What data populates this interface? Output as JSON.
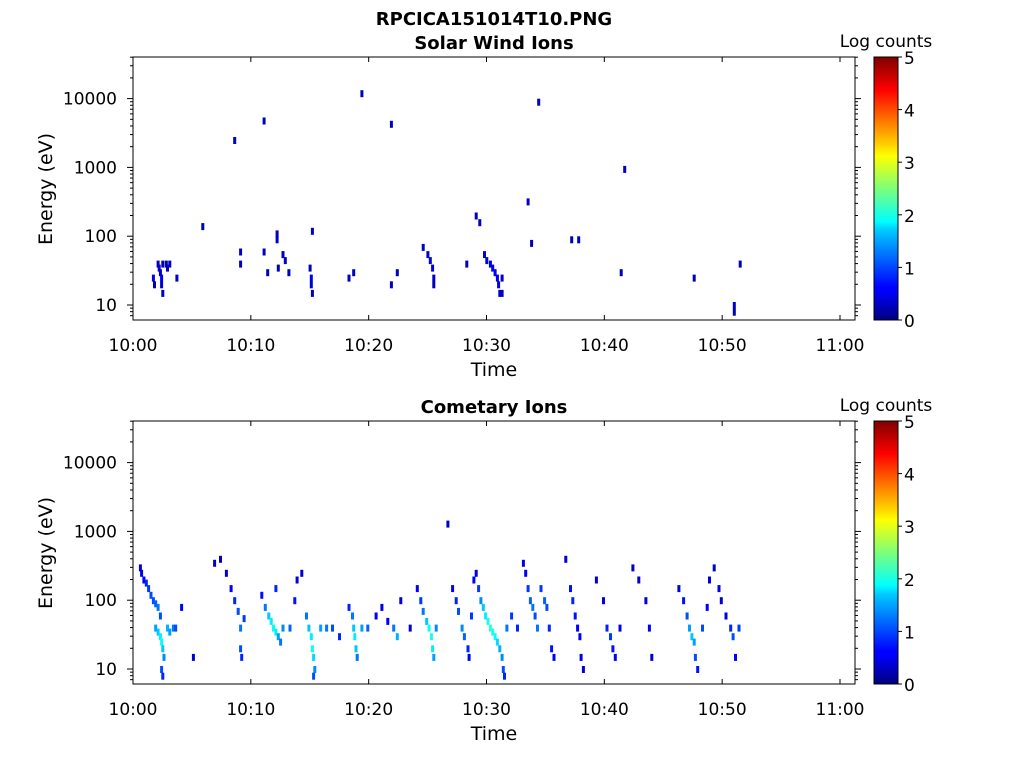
{
  "figure_title": "RPCICA151014T10.PNG",
  "chart_data": [
    {
      "type": "heatmap",
      "title": "Solar Wind Ions",
      "xlabel": "Time",
      "ylabel": "Energy (eV)",
      "x_ticks": [
        "10:00",
        "10:10",
        "10:20",
        "10:30",
        "10:40",
        "10:50",
        "11:00"
      ],
      "x_range_minutes": [
        0,
        60
      ],
      "y_ticks": [
        "10",
        "100",
        "1000",
        "10000"
      ],
      "y_scale": "log",
      "y_range": [
        6,
        45000
      ],
      "colorbar": {
        "label": "Log counts",
        "ticks": [
          "0",
          "1",
          "2",
          "3",
          "4",
          "5"
        ],
        "range": [
          0,
          5
        ],
        "colormap": "jet"
      },
      "points_time_energy_logcounts": [
        [
          1.6,
          25,
          0.5
        ],
        [
          1.7,
          20,
          0.3
        ],
        [
          2.0,
          40,
          0.3
        ],
        [
          2.1,
          35,
          0.4
        ],
        [
          2.2,
          30,
          0.3
        ],
        [
          2.3,
          25,
          0.6
        ],
        [
          2.3,
          20,
          0.4
        ],
        [
          2.4,
          15,
          0.3
        ],
        [
          2.4,
          40,
          0.3
        ],
        [
          2.7,
          40,
          0.2
        ],
        [
          2.8,
          35,
          0.3
        ],
        [
          3.0,
          40,
          0.3
        ],
        [
          3.6,
          25,
          0.3
        ],
        [
          5.8,
          140,
          0.3
        ],
        [
          8.5,
          2500,
          0.3
        ],
        [
          9.0,
          60,
          0.3
        ],
        [
          9.0,
          40,
          0.3
        ],
        [
          11.0,
          4800,
          0.3
        ],
        [
          11.0,
          60,
          0.3
        ],
        [
          11.3,
          30,
          0.3
        ],
        [
          12.1,
          110,
          0.3
        ],
        [
          12.1,
          90,
          0.4
        ],
        [
          12.2,
          35,
          0.3
        ],
        [
          12.6,
          55,
          0.3
        ],
        [
          12.8,
          45,
          0.3
        ],
        [
          13.1,
          30,
          0.3
        ],
        [
          14.9,
          35,
          0.3
        ],
        [
          15.0,
          25,
          0.5
        ],
        [
          15.0,
          20,
          0.4
        ],
        [
          15.1,
          15,
          0.3
        ],
        [
          15.1,
          120,
          0.3
        ],
        [
          18.2,
          25,
          0.3
        ],
        [
          18.6,
          30,
          0.3
        ],
        [
          19.3,
          12000,
          0.3
        ],
        [
          21.8,
          4300,
          0.3
        ],
        [
          21.8,
          20,
          0.3
        ],
        [
          22.3,
          30,
          0.3
        ],
        [
          24.5,
          70,
          0.4
        ],
        [
          24.9,
          55,
          0.4
        ],
        [
          25.1,
          45,
          0.5
        ],
        [
          25.3,
          35,
          0.5
        ],
        [
          25.4,
          25,
          0.4
        ],
        [
          25.4,
          20,
          0.3
        ],
        [
          28.2,
          40,
          0.3
        ],
        [
          29.0,
          200,
          0.3
        ],
        [
          29.3,
          160,
          0.3
        ],
        [
          29.7,
          55,
          0.4
        ],
        [
          29.9,
          45,
          0.5
        ],
        [
          30.2,
          40,
          0.5
        ],
        [
          30.4,
          35,
          0.6
        ],
        [
          30.6,
          30,
          0.6
        ],
        [
          30.8,
          25,
          0.5
        ],
        [
          30.9,
          20,
          0.5
        ],
        [
          31.0,
          15,
          0.4
        ],
        [
          31.2,
          25,
          0.4
        ],
        [
          31.2,
          15,
          0.3
        ],
        [
          33.4,
          320,
          0.3
        ],
        [
          33.7,
          80,
          0.3
        ],
        [
          34.3,
          9000,
          0.3
        ],
        [
          37.1,
          90,
          0.3
        ],
        [
          37.7,
          90,
          0.3
        ],
        [
          41.3,
          30,
          0.3
        ],
        [
          41.6,
          950,
          0.3
        ],
        [
          47.5,
          25,
          0.3
        ],
        [
          50.9,
          10,
          0.4
        ],
        [
          50.9,
          8,
          0.3
        ],
        [
          51.4,
          40,
          0.3
        ]
      ]
    },
    {
      "type": "heatmap",
      "title": "Cometary Ions",
      "xlabel": "Time",
      "ylabel": "Energy (eV)",
      "x_ticks": [
        "10:00",
        "10:10",
        "10:20",
        "10:30",
        "10:40",
        "10:50",
        "11:00"
      ],
      "x_range_minutes": [
        0,
        60
      ],
      "y_ticks": [
        "10",
        "100",
        "1000",
        "10000"
      ],
      "y_scale": "log",
      "y_range": [
        6,
        45000
      ],
      "colorbar": {
        "label": "Log counts",
        "ticks": [
          "0",
          "1",
          "2",
          "3",
          "4",
          "5"
        ],
        "range": [
          0,
          5
        ],
        "colormap": "jet"
      },
      "points_time_energy_logcounts": [
        [
          0.5,
          300,
          0.4
        ],
        [
          0.6,
          250,
          0.5
        ],
        [
          0.8,
          200,
          0.6
        ],
        [
          1.0,
          180,
          0.8
        ],
        [
          1.2,
          150,
          0.9
        ],
        [
          1.4,
          120,
          1.0
        ],
        [
          1.6,
          100,
          1.0
        ],
        [
          1.8,
          90,
          1.1
        ],
        [
          2.0,
          80,
          1.2
        ],
        [
          2.2,
          60,
          1.0
        ],
        [
          1.8,
          40,
          1.4
        ],
        [
          2.0,
          35,
          1.6
        ],
        [
          2.2,
          30,
          1.8
        ],
        [
          2.3,
          25,
          1.9
        ],
        [
          2.4,
          20,
          1.6
        ],
        [
          2.5,
          15,
          1.3
        ],
        [
          2.3,
          10,
          1.0
        ],
        [
          2.4,
          8,
          0.8
        ],
        [
          2.8,
          40,
          1.5
        ],
        [
          3.0,
          35,
          1.4
        ],
        [
          3.3,
          40,
          1.2
        ],
        [
          3.5,
          40,
          1.0
        ],
        [
          4.0,
          80,
          0.6
        ],
        [
          5.0,
          15,
          0.4
        ],
        [
          6.8,
          350,
          0.3
        ],
        [
          7.3,
          400,
          0.3
        ],
        [
          7.8,
          250,
          0.4
        ],
        [
          8.2,
          150,
          0.6
        ],
        [
          8.5,
          100,
          0.8
        ],
        [
          8.8,
          70,
          1.0
        ],
        [
          9.0,
          40,
          1.2
        ],
        [
          9.0,
          20,
          1.0
        ],
        [
          9.1,
          15,
          0.8
        ],
        [
          9.3,
          55,
          0.9
        ],
        [
          10.8,
          120,
          0.7
        ],
        [
          11.1,
          80,
          1.2
        ],
        [
          11.4,
          60,
          1.6
        ],
        [
          11.6,
          50,
          1.8
        ],
        [
          11.8,
          40,
          1.9
        ],
        [
          12.0,
          35,
          1.8
        ],
        [
          12.2,
          30,
          1.4
        ],
        [
          12.4,
          25,
          1.2
        ],
        [
          12.0,
          150,
          0.8
        ],
        [
          12.6,
          40,
          1.3
        ],
        [
          13.2,
          40,
          1.1
        ],
        [
          13.6,
          100,
          0.7
        ],
        [
          13.8,
          200,
          0.5
        ],
        [
          14.2,
          250,
          0.4
        ],
        [
          14.6,
          60,
          1.2
        ],
        [
          14.8,
          40,
          1.6
        ],
        [
          15.0,
          30,
          1.8
        ],
        [
          15.1,
          20,
          1.9
        ],
        [
          15.2,
          15,
          1.7
        ],
        [
          15.3,
          10,
          1.3
        ],
        [
          15.2,
          8,
          1.0
        ],
        [
          15.8,
          40,
          1.4
        ],
        [
          16.3,
          40,
          1.2
        ],
        [
          16.8,
          40,
          1.0
        ],
        [
          17.4,
          30,
          0.8
        ],
        [
          18.2,
          80,
          0.8
        ],
        [
          18.5,
          60,
          1.2
        ],
        [
          18.6,
          40,
          1.6
        ],
        [
          18.7,
          30,
          1.8
        ],
        [
          18.8,
          20,
          1.6
        ],
        [
          18.9,
          15,
          1.2
        ],
        [
          19.3,
          40,
          1.4
        ],
        [
          19.8,
          40,
          1.1
        ],
        [
          20.5,
          60,
          0.6
        ],
        [
          21.0,
          80,
          0.5
        ],
        [
          21.5,
          50,
          0.6
        ],
        [
          22.0,
          40,
          1.2
        ],
        [
          22.3,
          30,
          1.5
        ],
        [
          22.6,
          100,
          0.5
        ],
        [
          23.4,
          40,
          0.5
        ],
        [
          24.0,
          150,
          0.6
        ],
        [
          24.3,
          100,
          0.9
        ],
        [
          24.5,
          70,
          1.2
        ],
        [
          24.8,
          50,
          1.6
        ],
        [
          25.0,
          40,
          1.9
        ],
        [
          25.2,
          30,
          2.0
        ],
        [
          25.3,
          20,
          1.8
        ],
        [
          25.4,
          15,
          1.4
        ],
        [
          25.6,
          40,
          1.3
        ],
        [
          26.6,
          1300,
          0.3
        ],
        [
          27.0,
          150,
          0.6
        ],
        [
          27.3,
          100,
          0.8
        ],
        [
          27.5,
          70,
          1.0
        ],
        [
          27.8,
          40,
          1.3
        ],
        [
          28.0,
          30,
          1.1
        ],
        [
          28.3,
          20,
          0.8
        ],
        [
          28.4,
          15,
          0.6
        ],
        [
          28.6,
          60,
          0.9
        ],
        [
          28.8,
          200,
          0.6
        ],
        [
          29.0,
          250,
          0.5
        ],
        [
          29.2,
          150,
          0.9
        ],
        [
          29.4,
          100,
          1.3
        ],
        [
          29.6,
          80,
          1.6
        ],
        [
          29.8,
          60,
          1.8
        ],
        [
          30.0,
          50,
          2.0
        ],
        [
          30.2,
          40,
          2.1
        ],
        [
          30.4,
          35,
          2.0
        ],
        [
          30.6,
          30,
          1.9
        ],
        [
          30.8,
          25,
          1.7
        ],
        [
          31.0,
          20,
          1.5
        ],
        [
          31.2,
          15,
          1.3
        ],
        [
          31.3,
          10,
          1.0
        ],
        [
          31.4,
          8,
          0.8
        ],
        [
          31.6,
          40,
          1.2
        ],
        [
          32.0,
          60,
          0.9
        ],
        [
          32.5,
          40,
          0.8
        ],
        [
          33.0,
          350,
          0.5
        ],
        [
          33.2,
          250,
          0.6
        ],
        [
          33.4,
          150,
          0.9
        ],
        [
          33.6,
          100,
          1.1
        ],
        [
          33.8,
          80,
          1.2
        ],
        [
          34.0,
          60,
          1.0
        ],
        [
          34.2,
          40,
          1.2
        ],
        [
          34.5,
          150,
          0.9
        ],
        [
          34.8,
          100,
          1.1
        ],
        [
          35.0,
          80,
          1.0
        ],
        [
          35.2,
          40,
          0.8
        ],
        [
          35.4,
          20,
          0.7
        ],
        [
          35.6,
          15,
          0.6
        ],
        [
          36.6,
          400,
          0.4
        ],
        [
          37.0,
          150,
          0.7
        ],
        [
          37.2,
          100,
          0.8
        ],
        [
          37.4,
          60,
          0.7
        ],
        [
          37.6,
          40,
          0.6
        ],
        [
          37.8,
          30,
          0.6
        ],
        [
          37.9,
          15,
          0.5
        ],
        [
          38.1,
          10,
          0.4
        ],
        [
          39.2,
          200,
          0.4
        ],
        [
          39.8,
          100,
          0.5
        ],
        [
          40.1,
          40,
          0.8
        ],
        [
          40.4,
          30,
          0.9
        ],
        [
          40.6,
          20,
          0.7
        ],
        [
          40.8,
          15,
          0.6
        ],
        [
          41.2,
          40,
          0.6
        ],
        [
          42.3,
          300,
          0.4
        ],
        [
          42.8,
          200,
          0.4
        ],
        [
          43.4,
          100,
          0.5
        ],
        [
          43.7,
          40,
          0.6
        ],
        [
          43.9,
          15,
          0.4
        ],
        [
          46.2,
          150,
          0.5
        ],
        [
          46.6,
          100,
          0.7
        ],
        [
          46.9,
          60,
          1.0
        ],
        [
          47.1,
          40,
          1.4
        ],
        [
          47.3,
          30,
          1.6
        ],
        [
          47.5,
          25,
          1.4
        ],
        [
          47.6,
          15,
          1.0
        ],
        [
          47.8,
          10,
          0.7
        ],
        [
          48.2,
          40,
          1.0
        ],
        [
          48.6,
          80,
          0.6
        ],
        [
          48.8,
          200,
          0.4
        ],
        [
          49.2,
          300,
          0.4
        ],
        [
          49.6,
          150,
          0.5
        ],
        [
          49.8,
          100,
          0.4
        ],
        [
          50.2,
          60,
          0.5
        ],
        [
          50.6,
          40,
          0.8
        ],
        [
          50.8,
          30,
          1.0
        ],
        [
          51.0,
          15,
          0.6
        ],
        [
          51.3,
          40,
          0.9
        ]
      ]
    }
  ]
}
